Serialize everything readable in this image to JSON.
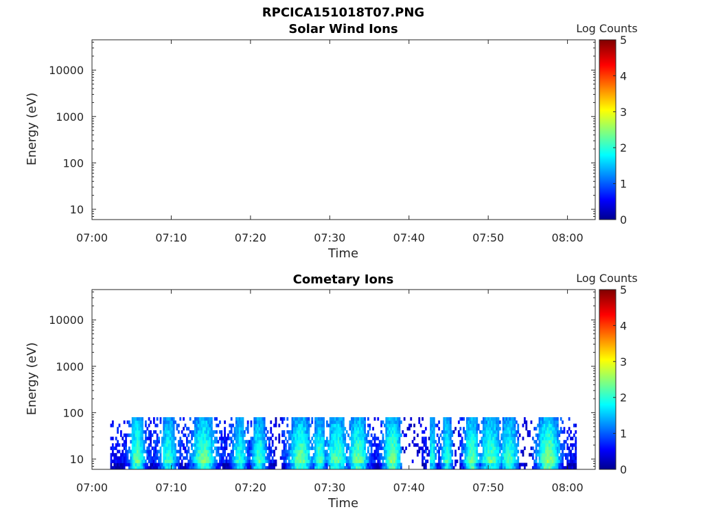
{
  "figure_title": "RPCICA151018T07.PNG",
  "chart_data": [
    {
      "type": "heatmap",
      "title": "Solar Wind Ions",
      "xlabel": "Time",
      "ylabel": "Energy (eV)",
      "x_ticks": [
        "07:00",
        "07:10",
        "07:20",
        "07:30",
        "07:40",
        "07:50",
        "08:00"
      ],
      "x_range_minutes": [
        0,
        63.5
      ],
      "y_ticks": [
        "10",
        "100",
        "1000",
        "10000"
      ],
      "y_scale": "log",
      "y_range": [
        6,
        45000
      ],
      "colorbar": {
        "label": "Log Counts",
        "ticks": [
          "0",
          "1",
          "2",
          "3",
          "4",
          "5"
        ],
        "range": [
          0,
          5
        ],
        "colormap": "jet"
      },
      "data_description": "no counts recorded",
      "columns": []
    },
    {
      "type": "heatmap",
      "title": "Cometary Ions",
      "xlabel": "Time",
      "ylabel": "Energy (eV)",
      "x_ticks": [
        "07:00",
        "07:10",
        "07:20",
        "07:30",
        "07:40",
        "07:50",
        "08:00"
      ],
      "x_range_minutes": [
        0,
        63.5
      ],
      "y_ticks": [
        "10",
        "100",
        "1000",
        "10000"
      ],
      "y_scale": "log",
      "y_range": [
        6,
        45000
      ],
      "colorbar": {
        "label": "Log Counts",
        "ticks": [
          "0",
          "1",
          "2",
          "3",
          "4",
          "5"
        ],
        "range": [
          0,
          5
        ],
        "colormap": "jet"
      },
      "data_start_minute": 2.3,
      "data_end_minute": 61,
      "max_energy_ev": 80,
      "bright_bands": [
        {
          "t": 5.6,
          "w": 1.0,
          "level": 2.0
        },
        {
          "t": 9.5,
          "w": 1.2,
          "level": 1.7
        },
        {
          "t": 14.0,
          "w": 1.6,
          "level": 2.0
        },
        {
          "t": 18.5,
          "w": 1.0,
          "level": 1.6
        },
        {
          "t": 21.0,
          "w": 1.0,
          "level": 1.8
        },
        {
          "t": 26.2,
          "w": 1.5,
          "level": 2.0
        },
        {
          "t": 28.6,
          "w": 0.9,
          "level": 1.8
        },
        {
          "t": 30.8,
          "w": 1.4,
          "level": 1.9
        },
        {
          "t": 33.5,
          "w": 1.3,
          "level": 2.0
        },
        {
          "t": 37.8,
          "w": 1.2,
          "level": 2.1
        },
        {
          "t": 42.8,
          "w": 0.6,
          "level": 1.6
        },
        {
          "t": 44.7,
          "w": 0.8,
          "level": 1.7
        },
        {
          "t": 47.8,
          "w": 1.0,
          "level": 2.0
        },
        {
          "t": 50.2,
          "w": 1.5,
          "level": 1.9
        },
        {
          "t": 52.5,
          "w": 1.2,
          "level": 1.8
        },
        {
          "t": 57.5,
          "w": 1.5,
          "level": 2.2
        }
      ],
      "gaps": [
        {
          "from": 23.0,
          "to": 23.8
        },
        {
          "from": 39.0,
          "to": 41.5
        },
        {
          "from": 42.2,
          "to": 42.5
        },
        {
          "from": 45.5,
          "to": 46.2
        },
        {
          "from": 53.8,
          "to": 55.5
        }
      ]
    }
  ]
}
